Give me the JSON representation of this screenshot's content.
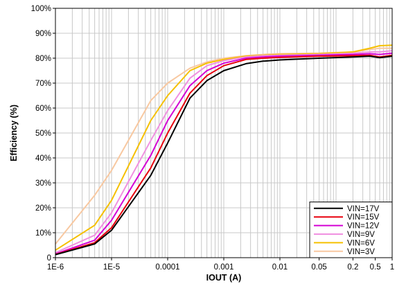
{
  "chart_data": {
    "type": "line",
    "title": "",
    "xlabel": "IOUT (A)",
    "ylabel": "Efficiency (%)",
    "x_scale": "log",
    "xlim": [
      1e-06,
      1
    ],
    "ylim": [
      0,
      100
    ],
    "grid": true,
    "legend_position": "bottom-right",
    "x_tick_labels": [
      {
        "value": 1e-06,
        "label": "1E-6"
      },
      {
        "value": 1e-05,
        "label": "1E-5"
      },
      {
        "value": 0.0001,
        "label": "0.0001"
      },
      {
        "value": 0.001,
        "label": "0.001"
      },
      {
        "value": 0.01,
        "label": "0.01"
      },
      {
        "value": 0.05,
        "label": "0.05"
      },
      {
        "value": 0.2,
        "label": "0.2"
      },
      {
        "value": 0.5,
        "label": "0.5"
      },
      {
        "value": 1,
        "label": "1"
      }
    ],
    "y_tick_labels": [
      {
        "value": 0,
        "label": "0"
      },
      {
        "value": 10,
        "label": "10%"
      },
      {
        "value": 20,
        "label": "20%"
      },
      {
        "value": 30,
        "label": "30%"
      },
      {
        "value": 40,
        "label": "40%"
      },
      {
        "value": 50,
        "label": "50%"
      },
      {
        "value": 60,
        "label": "60%"
      },
      {
        "value": 70,
        "label": "70%"
      },
      {
        "value": 80,
        "label": "80%"
      },
      {
        "value": 90,
        "label": "90%"
      },
      {
        "value": 100,
        "label": "100%"
      }
    ],
    "series": [
      {
        "name": "VIN=17V",
        "color": "#000000",
        "x": [
          1e-06,
          5e-06,
          1e-05,
          5e-05,
          0.0001,
          0.00025,
          0.0005,
          0.001,
          0.0025,
          0.005,
          0.01,
          0.05,
          0.2,
          0.4,
          0.6,
          1
        ],
        "y": [
          1.2,
          5.5,
          11,
          33,
          46,
          64,
          71,
          75,
          77.8,
          78.8,
          79.3,
          80,
          80.5,
          80.8,
          80.2,
          80.8
        ]
      },
      {
        "name": "VIN=15V",
        "color": "#e8000d",
        "x": [
          1e-06,
          5e-06,
          1e-05,
          5e-05,
          0.0001,
          0.00025,
          0.0005,
          0.001,
          0.0025,
          0.005,
          0.01,
          0.05,
          0.2,
          0.4,
          0.6,
          1
        ],
        "y": [
          1.3,
          6,
          12,
          36,
          50,
          66,
          73,
          77,
          79.5,
          80,
          80.3,
          80.8,
          81,
          81.2,
          80.5,
          81.2
        ]
      },
      {
        "name": "VIN=12V",
        "color": "#d400d4",
        "x": [
          1e-06,
          5e-06,
          1e-05,
          5e-05,
          0.0001,
          0.00025,
          0.0005,
          0.001,
          0.0025,
          0.005,
          0.01,
          0.05,
          0.2,
          0.4,
          0.6,
          1
        ],
        "y": [
          1.5,
          7,
          15,
          41,
          55,
          69,
          75,
          78,
          80,
          80.5,
          80.8,
          81.2,
          81.5,
          81.8,
          81.5,
          82
        ]
      },
      {
        "name": "VIN=9V",
        "color": "#f090e0",
        "x": [
          1e-06,
          5e-06,
          1e-05,
          5e-05,
          0.0001,
          0.00025,
          0.0005,
          0.001,
          0.0025,
          0.005,
          0.01,
          0.05,
          0.2,
          0.4,
          0.6,
          1
        ],
        "y": [
          2,
          9,
          18,
          47,
          59,
          72,
          77,
          79,
          80.5,
          81,
          81.2,
          81.5,
          82,
          82.5,
          82.5,
          83
        ]
      },
      {
        "name": "VIN=6V",
        "color": "#f5c000",
        "x": [
          1e-06,
          5e-06,
          1e-05,
          5e-05,
          0.0001,
          0.00025,
          0.0005,
          0.001,
          0.0025,
          0.005,
          0.01,
          0.05,
          0.2,
          0.4,
          0.6,
          1
        ],
        "y": [
          3,
          13,
          23,
          55,
          65,
          75,
          78,
          79.5,
          80.8,
          81.2,
          81.5,
          81.8,
          82.5,
          84,
          85,
          85.2
        ]
      },
      {
        "name": "VIN=3V",
        "color": "#f8c8a0",
        "x": [
          1e-06,
          5e-06,
          1e-05,
          5e-05,
          0.0001,
          0.00025,
          0.0005,
          0.001,
          0.0025,
          0.005,
          0.01,
          0.05,
          0.2,
          0.4,
          0.6,
          1
        ],
        "y": [
          5.5,
          25,
          35,
          63,
          70,
          76,
          78.5,
          80,
          81,
          81.5,
          81.8,
          82,
          82.5,
          83.5,
          84,
          84
        ]
      }
    ]
  }
}
